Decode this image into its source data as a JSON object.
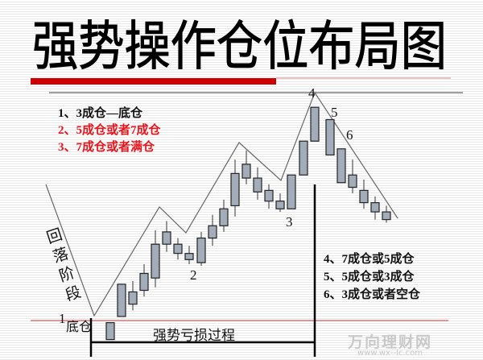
{
  "title": "强势操作仓位布局图",
  "legend_top": [
    "1、3成仓—底仓",
    "2、5成仓或者7成仓",
    "3、7成仓或者满仓"
  ],
  "legend_bottom": [
    "4、7成仓或5成仓",
    "5、5成仓或3成仓",
    "6、3成仓或者空仓"
  ],
  "side_label": [
    "回",
    "落",
    "阶",
    "段"
  ],
  "point_labels": {
    "p1": "1",
    "p1_text": "底仓",
    "p2": "2",
    "p3": "3",
    "p4": "4",
    "p5": "5",
    "p6": "6"
  },
  "range_label": "强势亏损过程",
  "watermark": {
    "name": "万向理财网",
    "url": "www.wx--lc.com"
  },
  "colors": {
    "accent_red": "#cc0000",
    "text_red": "#e8141c",
    "candle_fill": "#a2adb9",
    "line": "#666666"
  },
  "chart_data": {
    "type": "candlestick",
    "candles": [
      {
        "o": 0.7,
        "c": 1.8,
        "h": 1.8,
        "l": 0.7
      },
      {
        "o": 2.2,
        "c": 4.3,
        "h": 4.3,
        "l": 2.2
      },
      {
        "o": 3.0,
        "c": 3.8,
        "h": 4.5,
        "l": 2.6
      },
      {
        "o": 3.9,
        "c": 5.0,
        "h": 5.6,
        "l": 3.5
      },
      {
        "o": 4.7,
        "c": 6.9,
        "h": 7.8,
        "l": 4.1
      },
      {
        "o": 6.9,
        "c": 7.7,
        "h": 8.4,
        "l": 6.4
      },
      {
        "o": 6.3,
        "c": 6.9,
        "h": 7.3,
        "l": 5.9
      },
      {
        "o": 5.9,
        "c": 6.3,
        "h": 6.8,
        "l": 5.6
      },
      {
        "o": 5.7,
        "c": 7.3,
        "h": 7.7,
        "l": 5.5
      },
      {
        "o": 7.3,
        "c": 8.1,
        "h": 8.8,
        "l": 6.8
      },
      {
        "o": 8.1,
        "c": 9.2,
        "h": 9.8,
        "l": 7.7
      },
      {
        "o": 9.4,
        "c": 11.5,
        "h": 12.4,
        "l": 8.7
      },
      {
        "o": 11.2,
        "c": 12.1,
        "h": 13.0,
        "l": 10.8
      },
      {
        "o": 10.3,
        "c": 11.2,
        "h": 11.9,
        "l": 9.8
      },
      {
        "o": 9.7,
        "c": 10.4,
        "h": 10.8,
        "l": 9.2
      },
      {
        "o": 9.2,
        "c": 9.7,
        "h": 10.2,
        "l": 9.0
      },
      {
        "o": 9.2,
        "c": 11.4,
        "h": 11.4,
        "l": 9.2
      },
      {
        "o": 11.4,
        "c": 13.6,
        "h": 13.6,
        "l": 11.4
      },
      {
        "o": 13.6,
        "c": 15.8,
        "h": 15.8,
        "l": 13.6
      },
      {
        "o": 15.0,
        "c": 12.7,
        "h": 15.0,
        "l": 12.7
      },
      {
        "o": 13.1,
        "c": 10.9,
        "h": 13.1,
        "l": 10.9
      },
      {
        "o": 11.4,
        "c": 10.6,
        "h": 12.4,
        "l": 10.2
      },
      {
        "o": 10.4,
        "c": 9.6,
        "h": 11.1,
        "l": 9.2
      },
      {
        "o": 9.6,
        "c": 9.0,
        "h": 10.0,
        "l": 8.5
      },
      {
        "o": 9.0,
        "c": 8.5,
        "h": 9.4,
        "l": 8.3
      }
    ]
  }
}
